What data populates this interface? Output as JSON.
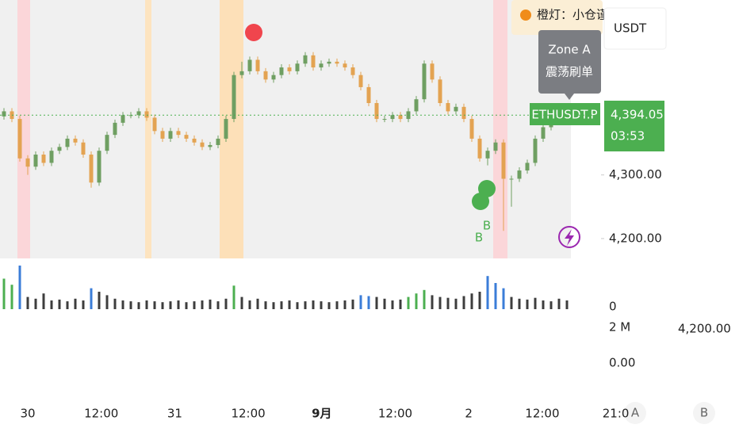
{
  "chart_data": {
    "type": "candlestick",
    "symbol": "ETHUSDT.P",
    "last_price_label": "4,394.05",
    "countdown": "03:53",
    "currency": "USDT",
    "legend_text": "橙灯：小仓谨",
    "tooltip": {
      "title": "Zone A",
      "text": "震荡刷单"
    },
    "signals": [
      "B",
      "B"
    ],
    "buttons": [
      "A",
      "B"
    ],
    "ylim": [
      4170,
      4575
    ],
    "yticks": [
      {
        "value": 4300,
        "label": "4,300.00"
      },
      {
        "value": 4200,
        "label": "4,200.00"
      }
    ],
    "extra_axis_labels": [
      "0",
      "2 M",
      "0.00",
      "4,200.00"
    ],
    "xticks": [
      "30",
      "12:00",
      "31",
      "12:00",
      "9月",
      "12:00",
      "2",
      "12:00",
      "21:0"
    ],
    "up_color": "#6f9f62",
    "down_color": "#e3a352",
    "open": [
      4392,
      4400,
      4388,
      4326,
      4313,
      4332,
      4319,
      4338,
      4344,
      4357,
      4351,
      4332,
      4288,
      4338,
      4363,
      4382,
      4394,
      4394,
      4400,
      4390,
      4369,
      4357,
      4369,
      4363,
      4357,
      4351,
      4344,
      4347,
      4357,
      4388,
      4457,
      4463,
      4481,
      4463,
      4450,
      4457,
      4469,
      4463,
      4475,
      4488,
      4469,
      4475,
      4478,
      4475,
      4469,
      4457,
      4438,
      4413,
      4388,
      4388,
      4394,
      4388,
      4400,
      4419,
      4475,
      4450,
      4413,
      4400,
      4407,
      4388,
      4357,
      4326,
      4338,
      4351,
      4294,
      4294,
      4307,
      4319,
      4357,
      4375,
      4388,
      4388
    ],
    "high": [
      4405,
      4405,
      4393,
      4331,
      4337,
      4337,
      4343,
      4349,
      4362,
      4362,
      4356,
      4337,
      4343,
      4368,
      4387,
      4399,
      4399,
      4405,
      4405,
      4395,
      4374,
      4374,
      4374,
      4368,
      4362,
      4356,
      4352,
      4362,
      4393,
      4462,
      4478,
      4486,
      4486,
      4468,
      4462,
      4474,
      4474,
      4480,
      4493,
      4493,
      4480,
      4483,
      4483,
      4480,
      4474,
      4462,
      4443,
      4418,
      4393,
      4399,
      4399,
      4405,
      4424,
      4480,
      4480,
      4455,
      4418,
      4412,
      4412,
      4393,
      4362,
      4343,
      4356,
      4356,
      4299,
      4312,
      4324,
      4362,
      4380,
      4393,
      4393,
      4399
    ],
    "low": [
      4387,
      4383,
      4321,
      4300,
      4308,
      4314,
      4314,
      4333,
      4339,
      4346,
      4327,
      4280,
      4283,
      4333,
      4358,
      4377,
      4389,
      4389,
      4385,
      4364,
      4352,
      4352,
      4358,
      4352,
      4346,
      4339,
      4339,
      4342,
      4352,
      4383,
      4452,
      4458,
      4458,
      4445,
      4445,
      4452,
      4458,
      4458,
      4470,
      4464,
      4464,
      4470,
      4470,
      4464,
      4452,
      4433,
      4408,
      4383,
      4383,
      4383,
      4383,
      4383,
      4395,
      4414,
      4445,
      4408,
      4395,
      4395,
      4383,
      4352,
      4321,
      4315,
      4333,
      4212,
      4250,
      4289,
      4302,
      4314,
      4352,
      4370,
      4383,
      4383
    ],
    "close": [
      4400,
      4388,
      4326,
      4313,
      4332,
      4319,
      4338,
      4344,
      4357,
      4351,
      4332,
      4288,
      4338,
      4363,
      4382,
      4394,
      4394,
      4400,
      4390,
      4369,
      4357,
      4369,
      4363,
      4357,
      4351,
      4344,
      4347,
      4357,
      4388,
      4457,
      4463,
      4481,
      4463,
      4450,
      4457,
      4469,
      4463,
      4475,
      4488,
      4469,
      4475,
      4478,
      4475,
      4469,
      4457,
      4438,
      4413,
      4388,
      4388,
      4394,
      4388,
      4400,
      4419,
      4475,
      4450,
      4413,
      4400,
      4407,
      4388,
      4357,
      4326,
      4338,
      4351,
      4294,
      4294,
      4307,
      4319,
      4357,
      4375,
      4388,
      4388,
      4394.05
    ],
    "volume": [
      35,
      28,
      50,
      14,
      12,
      18,
      10,
      11,
      9,
      12,
      10,
      24,
      20,
      16,
      12,
      10,
      9,
      8,
      10,
      9,
      8,
      9,
      10,
      8,
      9,
      10,
      11,
      9,
      12,
      27,
      14,
      10,
      12,
      9,
      8,
      9,
      10,
      8,
      9,
      10,
      9,
      8,
      9,
      10,
      11,
      16,
      15,
      14,
      12,
      10,
      11,
      14,
      18,
      22,
      16,
      14,
      13,
      12,
      15,
      18,
      20,
      38,
      30,
      24,
      14,
      12,
      11,
      13,
      10,
      9,
      12,
      10
    ],
    "volume_color": "#3d3d3d",
    "volume_highlights": {
      "#4caf50": [
        0,
        1,
        29,
        51,
        52,
        53
      ],
      "#3b7dd8": [
        2,
        11,
        45,
        46,
        61,
        62,
        63
      ]
    }
  }
}
